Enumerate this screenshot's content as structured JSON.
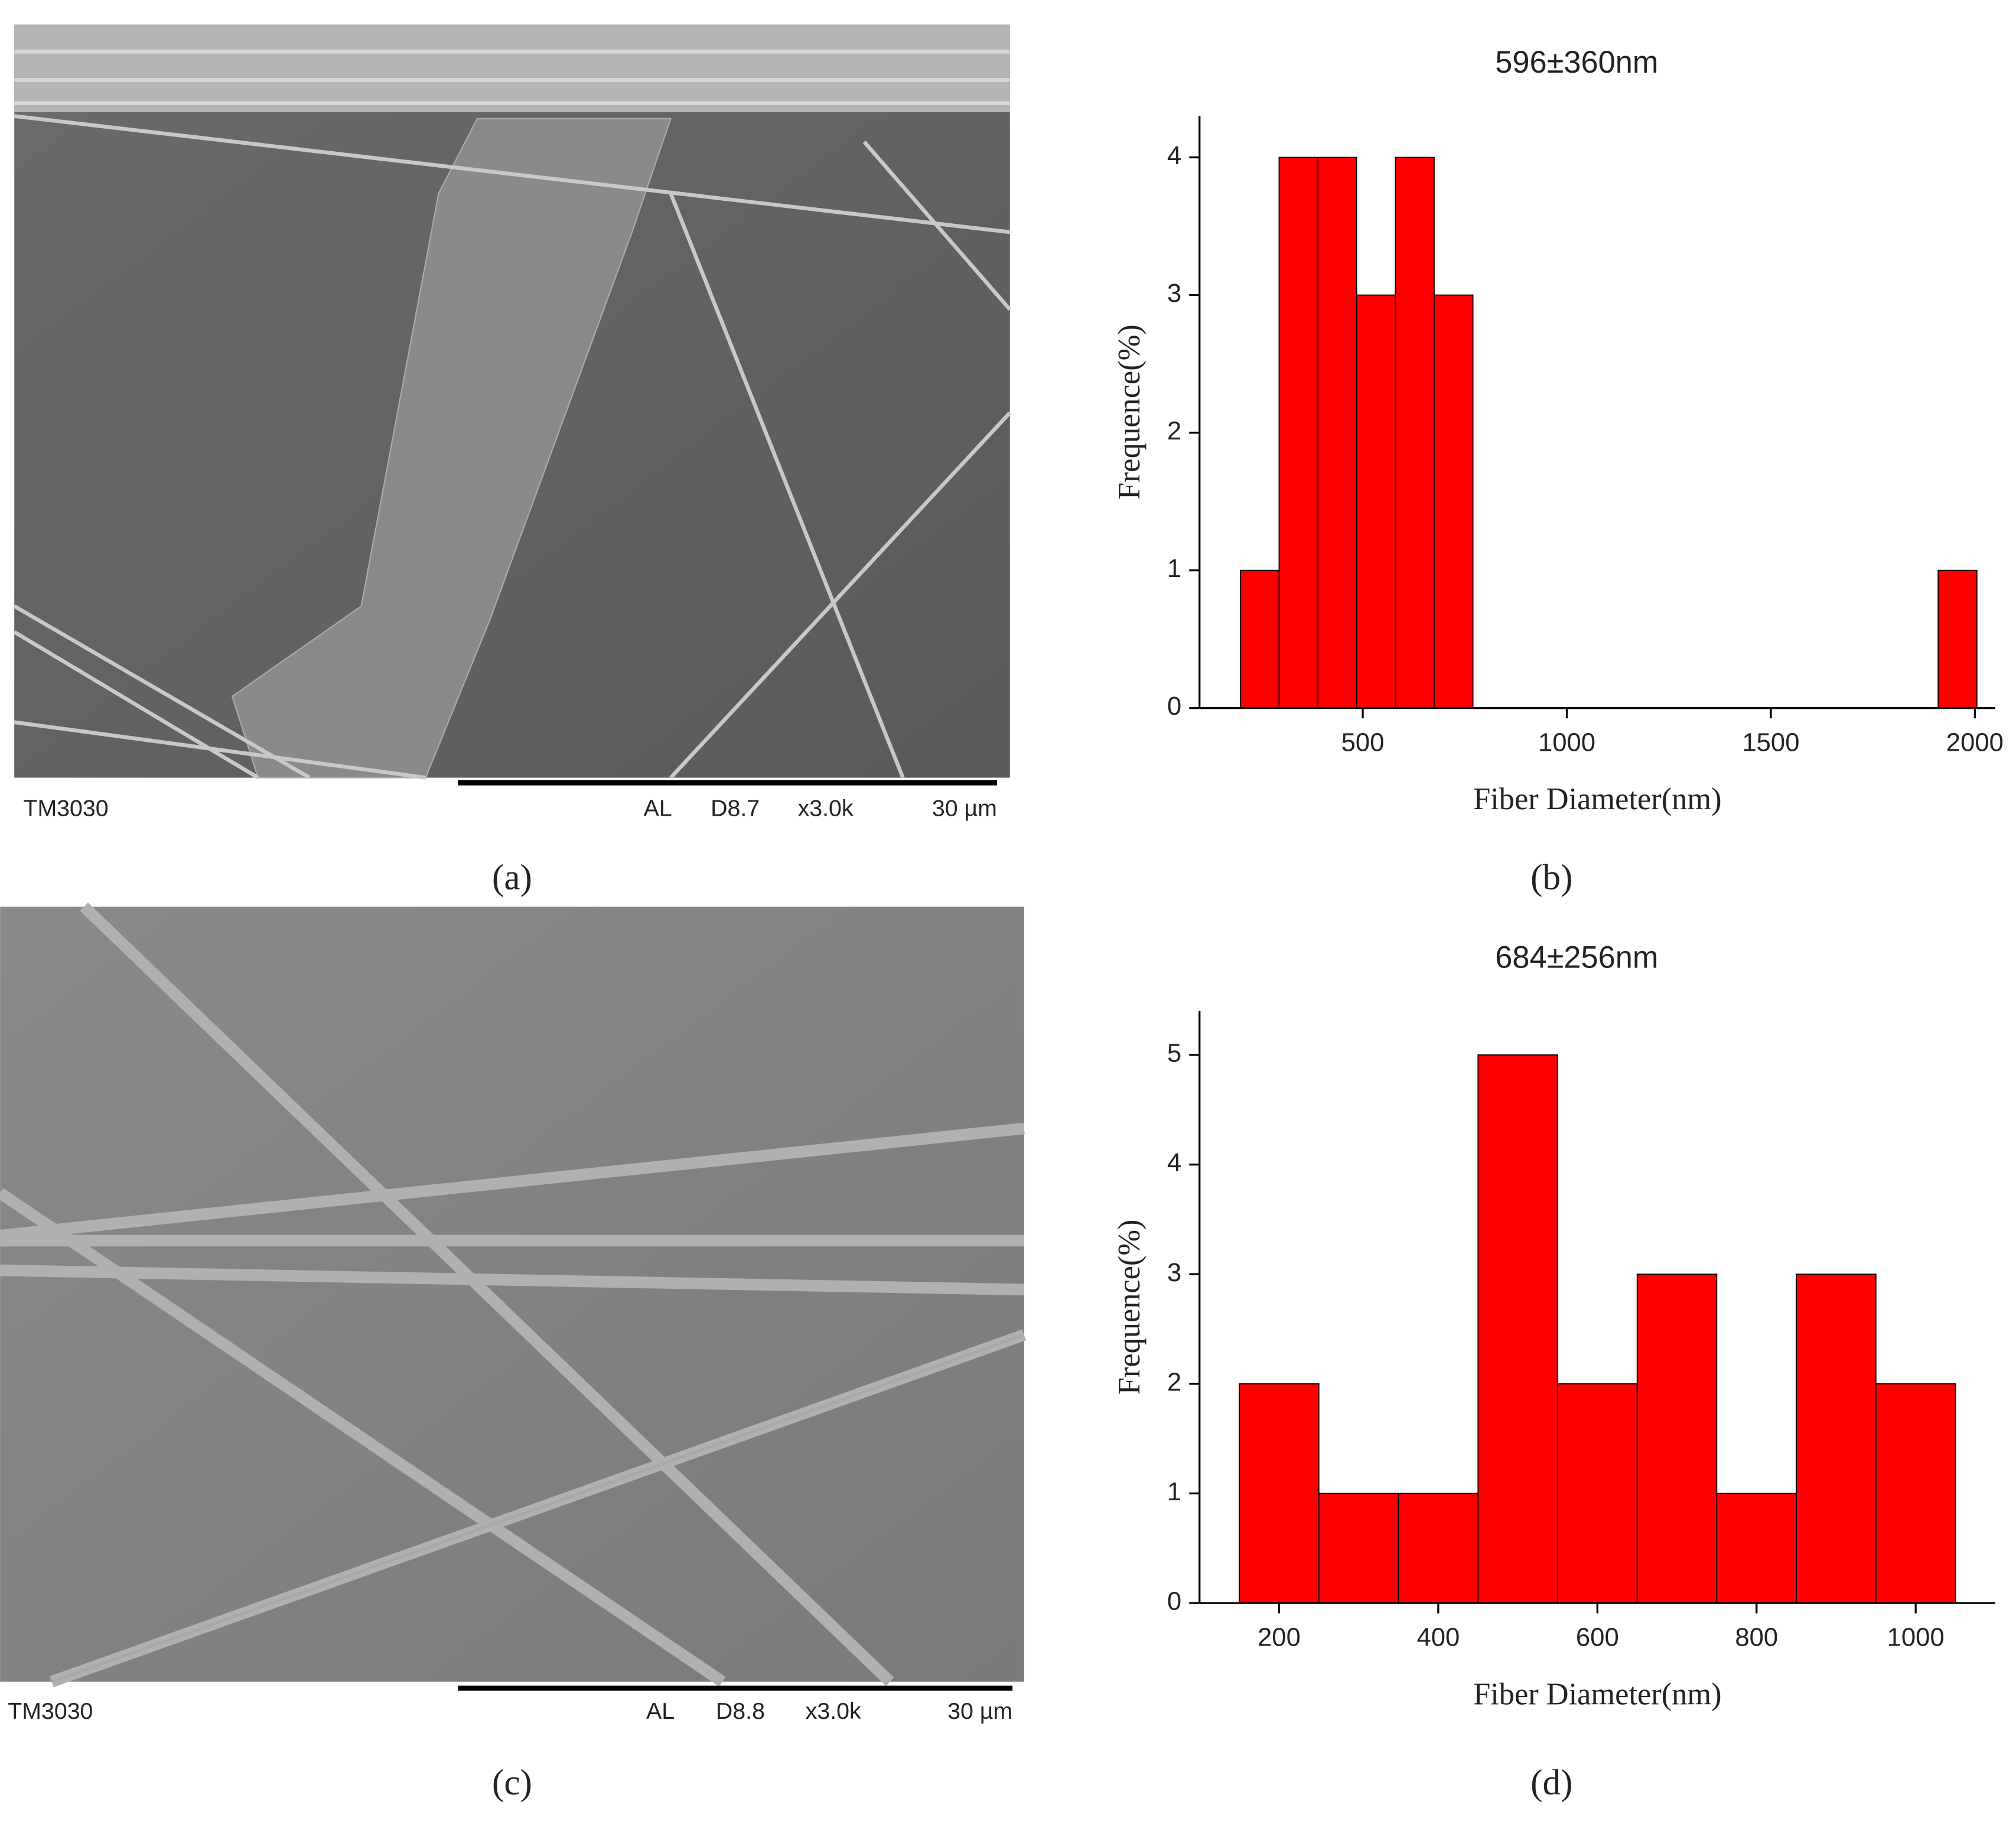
{
  "panels": {
    "a": {
      "label": "(a)",
      "instrument": "TM3030",
      "mode": "AL",
      "distance": "D8.7",
      "magnification": "x3.0k",
      "scale": "30 µm"
    },
    "b": {
      "label": "(b)"
    },
    "c": {
      "label": "(c)",
      "instrument": "TM3030",
      "mode": "AL",
      "distance": "D8.8",
      "magnification": "x3.0k",
      "scale": "30 µm"
    },
    "d": {
      "label": "(d)"
    }
  },
  "chart_data": [
    {
      "type": "histogram",
      "title": "596±360nm",
      "x_label": "Fiber Diameter(nm)",
      "y_label": "Frequence(%)",
      "bins": [
        200,
        295,
        390,
        485,
        580,
        675,
        770,
        865,
        960,
        1055,
        1150,
        1245,
        1340,
        1435,
        1530,
        1625,
        1720,
        1815,
        1910,
        2005
      ],
      "values": [
        1,
        4,
        4,
        3,
        4,
        3,
        0,
        0,
        0,
        0,
        0,
        0,
        0,
        0,
        0,
        0,
        0,
        0,
        1
      ],
      "color": "#ff0000",
      "xlim": [
        100,
        2050
      ],
      "xticks": [
        500,
        1000,
        1500,
        2000
      ],
      "ylim": [
        0,
        4.3
      ],
      "yticks": [
        0,
        1,
        2,
        3,
        4
      ]
    },
    {
      "type": "histogram",
      "title": "684±256nm",
      "x_label": "Fiber Diameter(nm)",
      "y_label": "Frequence(%)",
      "bins": [
        150,
        250,
        350,
        450,
        550,
        650,
        750,
        850,
        950,
        1050
      ],
      "values": [
        2,
        1,
        1,
        5,
        2,
        3,
        1,
        3,
        2
      ],
      "color": "#ff0000",
      "xlim": [
        100,
        1100
      ],
      "xticks": [
        200,
        400,
        600,
        800,
        1000
      ],
      "ylim": [
        0,
        5.4
      ],
      "yticks": [
        0,
        1,
        2,
        3,
        4,
        5
      ]
    }
  ]
}
